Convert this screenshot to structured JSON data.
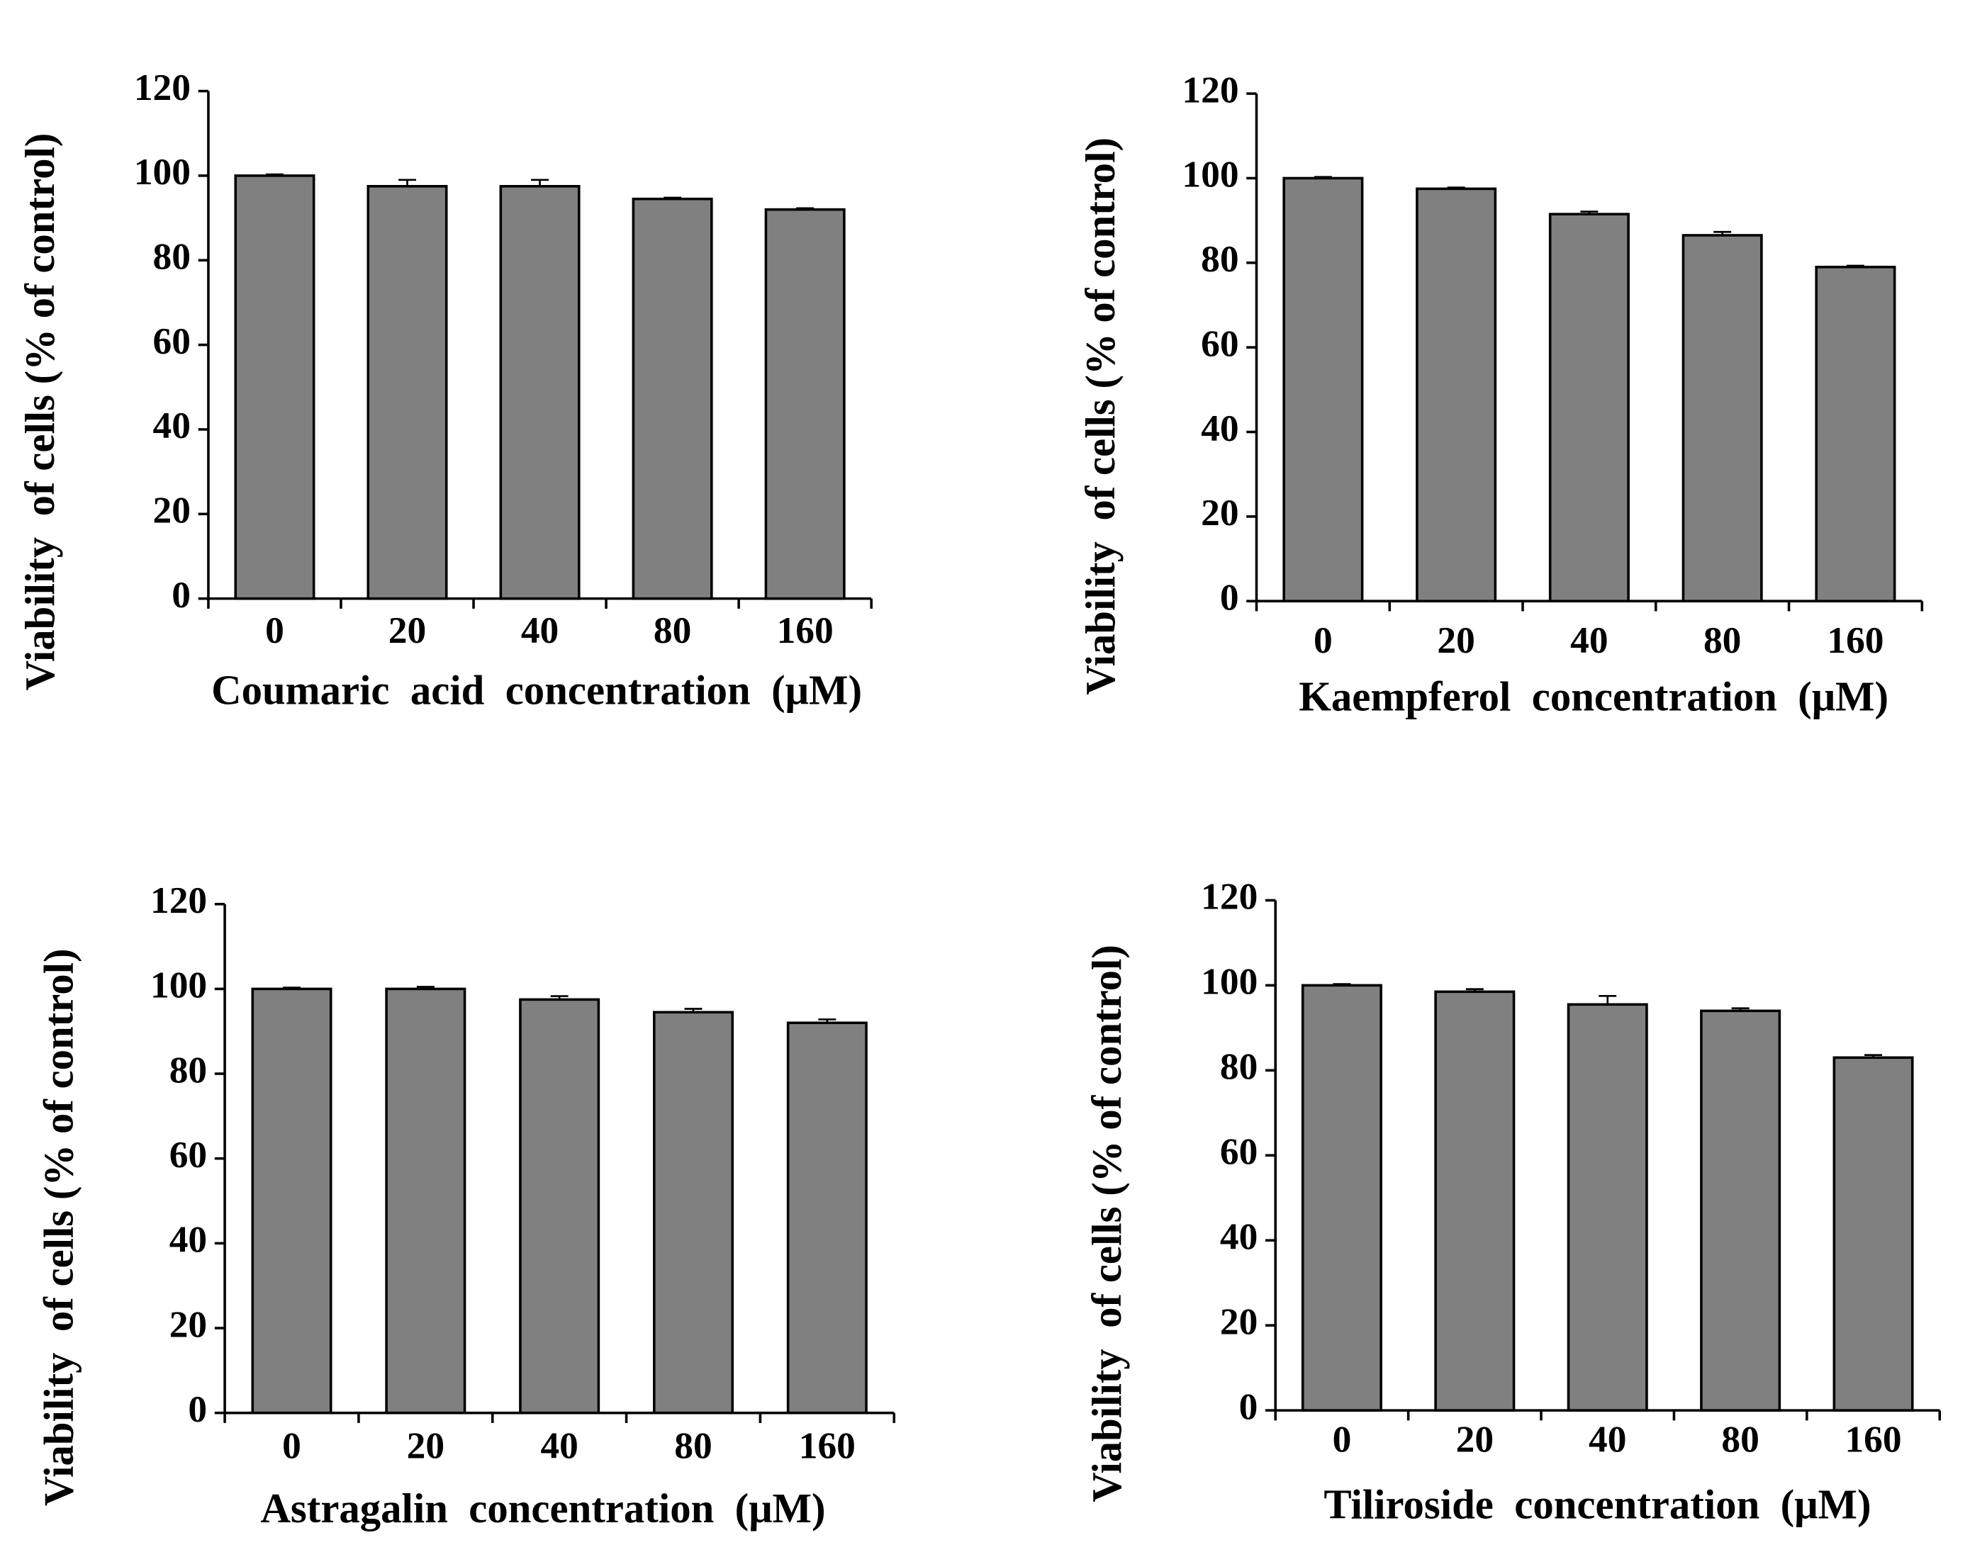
{
  "chart_data": [
    {
      "type": "bar",
      "categories": [
        "0",
        "20",
        "40",
        "80",
        "160"
      ],
      "values": [
        100,
        97.5,
        97.5,
        94.5,
        92
      ],
      "errors": [
        0.3,
        1.5,
        1.5,
        0.3,
        0.3
      ],
      "color": "#808080",
      "xlabel": "Coumaric  acid  concentration  (μM)",
      "ylabel": "Viability  of cells (% of control)",
      "ylim": [
        0,
        120
      ],
      "yticks": [
        0,
        20,
        40,
        60,
        80,
        100,
        120
      ]
    },
    {
      "type": "bar",
      "categories": [
        "0",
        "20",
        "40",
        "80",
        "160"
      ],
      "values": [
        100,
        97.5,
        91.5,
        86.5,
        79
      ],
      "errors": [
        0.3,
        0.3,
        0.6,
        0.8,
        0.3
      ],
      "color": "#808080",
      "xlabel": "Kaempferol  concentration  (μM)",
      "ylabel": "Viability  of cells (% of control)",
      "ylim": [
        0,
        120
      ],
      "yticks": [
        0,
        20,
        40,
        60,
        80,
        100,
        120
      ]
    },
    {
      "type": "bar",
      "categories": [
        "0",
        "20",
        "40",
        "80",
        "160"
      ],
      "values": [
        100,
        100,
        97.5,
        94.5,
        92
      ],
      "errors": [
        0.3,
        0.5,
        0.8,
        0.8,
        0.8
      ],
      "color": "#808080",
      "xlabel": "Astragalin  concentration  (μM)",
      "ylabel": "Viability  of cells (% of control)",
      "ylim": [
        0,
        120
      ],
      "yticks": [
        0,
        20,
        40,
        60,
        80,
        100,
        120
      ]
    },
    {
      "type": "bar",
      "categories": [
        "0",
        "20",
        "40",
        "80",
        "160"
      ],
      "values": [
        100,
        98.5,
        95.5,
        94,
        83
      ],
      "errors": [
        0.3,
        0.6,
        2,
        0.6,
        0.6
      ],
      "color": "#808080",
      "xlabel": "Tiliroside  concentration  (μM)",
      "ylabel": "Viability  of cells (% of control)",
      "ylim": [
        0,
        120
      ],
      "yticks": [
        0,
        20,
        40,
        60,
        80,
        100,
        120
      ]
    }
  ]
}
